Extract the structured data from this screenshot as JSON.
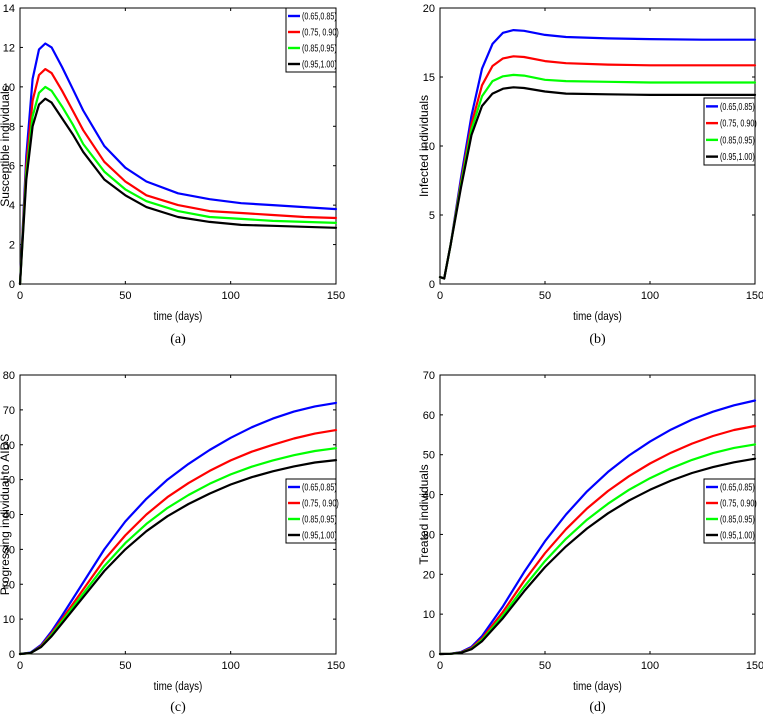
{
  "figure": {
    "colors": {
      "(0.65,0.85)": "#0000ff",
      "(0.75, 0.90)": "#ff0000",
      "(0.85,0.95)": "#00ff00",
      "(0.95,1.00)": "#000000"
    }
  },
  "chart_data": [
    {
      "type": "line",
      "panel": "a",
      "caption": "(a)",
      "xlabel": "time (days)",
      "ylabel": "Susceptible individuals",
      "xlim": [
        0,
        150
      ],
      "ylim": [
        0,
        14
      ],
      "xticks": [
        0,
        50,
        100,
        150
      ],
      "yticks": [
        0,
        2,
        4,
        6,
        8,
        10,
        12,
        14
      ],
      "legend_position": "top-right",
      "x": [
        0,
        3,
        6,
        9,
        12,
        15,
        20,
        25,
        30,
        40,
        50,
        60,
        75,
        90,
        105,
        120,
        135,
        150
      ],
      "series": [
        {
          "name": "(0.65,0.85)",
          "values": [
            0,
            6.5,
            10.4,
            11.9,
            12.2,
            12.0,
            11.0,
            9.9,
            8.8,
            7.0,
            5.9,
            5.2,
            4.6,
            4.3,
            4.1,
            4.0,
            3.9,
            3.8
          ]
        },
        {
          "name": "(0.75, 0.90)",
          "values": [
            0,
            6.0,
            9.3,
            10.6,
            10.9,
            10.7,
            9.8,
            8.8,
            7.8,
            6.2,
            5.2,
            4.5,
            4.0,
            3.7,
            3.6,
            3.5,
            3.4,
            3.35
          ]
        },
        {
          "name": "(0.85,0.95)",
          "values": [
            0,
            5.6,
            8.5,
            9.7,
            10.0,
            9.8,
            9.0,
            8.1,
            7.1,
            5.7,
            4.8,
            4.2,
            3.7,
            3.4,
            3.3,
            3.2,
            3.15,
            3.1
          ]
        },
        {
          "name": "(0.95,1.00)",
          "values": [
            0,
            5.3,
            8.0,
            9.1,
            9.4,
            9.2,
            8.4,
            7.6,
            6.7,
            5.3,
            4.5,
            3.9,
            3.4,
            3.15,
            3.0,
            2.95,
            2.9,
            2.85
          ]
        }
      ]
    },
    {
      "type": "line",
      "panel": "b",
      "caption": "(b)",
      "xlabel": "time (days)",
      "ylabel": "Infected individuals",
      "xlim": [
        0,
        150
      ],
      "ylim": [
        0,
        20
      ],
      "xticks": [
        0,
        50,
        100,
        150
      ],
      "yticks": [
        0,
        5,
        10,
        15,
        20
      ],
      "legend_position": "center-right",
      "x": [
        0,
        2,
        5,
        10,
        15,
        20,
        25,
        30,
        35,
        40,
        50,
        60,
        80,
        100,
        125,
        150
      ],
      "series": [
        {
          "name": "(0.65,0.85)",
          "values": [
            0.5,
            0.4,
            2.8,
            7.7,
            12.2,
            15.6,
            17.4,
            18.2,
            18.4,
            18.35,
            18.05,
            17.9,
            17.8,
            17.75,
            17.7,
            17.7
          ]
        },
        {
          "name": "(0.75, 0.90)",
          "values": [
            0.5,
            0.4,
            2.8,
            7.4,
            11.6,
            14.4,
            15.8,
            16.35,
            16.5,
            16.45,
            16.15,
            16.0,
            15.9,
            15.85,
            15.85,
            15.85
          ]
        },
        {
          "name": "(0.85,0.95)",
          "values": [
            0.5,
            0.4,
            2.8,
            7.2,
            11.2,
            13.6,
            14.7,
            15.05,
            15.15,
            15.1,
            14.8,
            14.7,
            14.65,
            14.6,
            14.6,
            14.6
          ]
        },
        {
          "name": "(0.95,1.00)",
          "values": [
            0.5,
            0.4,
            2.8,
            7.0,
            10.8,
            12.9,
            13.8,
            14.15,
            14.25,
            14.2,
            13.95,
            13.8,
            13.75,
            13.7,
            13.7,
            13.7
          ]
        }
      ]
    },
    {
      "type": "line",
      "panel": "c",
      "caption": "(c)",
      "xlabel": "time (days)",
      "ylabel": "Progressing individual to AIDS",
      "xlim": [
        0,
        150
      ],
      "ylim": [
        0,
        80
      ],
      "xticks": [
        0,
        50,
        100,
        150
      ],
      "yticks": [
        0,
        10,
        20,
        30,
        40,
        50,
        60,
        70,
        80
      ],
      "legend_position": "center-right",
      "x": [
        0,
        5,
        10,
        15,
        20,
        30,
        40,
        50,
        60,
        70,
        80,
        90,
        100,
        110,
        120,
        130,
        140,
        150
      ],
      "series": [
        {
          "name": "(0.65,0.85)",
          "values": [
            0,
            0.4,
            2.6,
            6.5,
            11.0,
            20.5,
            30.0,
            38.0,
            44.5,
            50.0,
            54.5,
            58.5,
            62.0,
            65.0,
            67.5,
            69.5,
            71.0,
            72.0
          ]
        },
        {
          "name": "(0.75, 0.90)",
          "values": [
            0,
            0.3,
            2.3,
            5.9,
            10.0,
            18.5,
            27.0,
            34.0,
            40.0,
            45.0,
            49.0,
            52.5,
            55.5,
            58.0,
            60.0,
            61.8,
            63.2,
            64.2
          ]
        },
        {
          "name": "(0.85,0.95)",
          "values": [
            0,
            0.3,
            2.1,
            5.5,
            9.4,
            17.3,
            25.2,
            31.8,
            37.3,
            41.9,
            45.6,
            48.8,
            51.5,
            53.7,
            55.5,
            57.0,
            58.2,
            59.0
          ]
        },
        {
          "name": "(0.95,1.00)",
          "values": [
            0,
            0.3,
            2.0,
            5.1,
            8.8,
            16.3,
            23.8,
            30.0,
            35.2,
            39.5,
            43.0,
            46.0,
            48.6,
            50.7,
            52.4,
            53.8,
            54.9,
            55.6
          ]
        }
      ]
    },
    {
      "type": "line",
      "panel": "d",
      "caption": "(d)",
      "xlabel": "time (days)",
      "ylabel": "Treated individuals",
      "xlim": [
        0,
        150
      ],
      "ylim": [
        0,
        70
      ],
      "xticks": [
        0,
        50,
        100,
        150
      ],
      "yticks": [
        0,
        10,
        20,
        30,
        40,
        50,
        60,
        70
      ],
      "legend_position": "center-right",
      "x": [
        0,
        5,
        10,
        15,
        20,
        30,
        40,
        50,
        60,
        70,
        80,
        90,
        100,
        110,
        120,
        130,
        140,
        150
      ],
      "series": [
        {
          "name": "(0.65,0.85)",
          "values": [
            0,
            0.05,
            0.5,
            1.8,
            4.5,
            12.0,
            20.5,
            28.3,
            35.0,
            40.8,
            45.7,
            49.8,
            53.3,
            56.3,
            58.8,
            60.8,
            62.4,
            63.6
          ]
        },
        {
          "name": "(0.75, 0.90)",
          "values": [
            0,
            0.05,
            0.4,
            1.5,
            3.9,
            10.6,
            18.3,
            25.3,
            31.3,
            36.5,
            40.9,
            44.6,
            47.8,
            50.5,
            52.8,
            54.7,
            56.2,
            57.2
          ]
        },
        {
          "name": "(0.85,0.95)",
          "values": [
            0,
            0.05,
            0.35,
            1.3,
            3.5,
            9.7,
            16.8,
            23.3,
            28.9,
            33.7,
            37.7,
            41.2,
            44.1,
            46.6,
            48.7,
            50.4,
            51.7,
            52.6
          ]
        },
        {
          "name": "(0.95,1.00)",
          "values": [
            0,
            0.05,
            0.3,
            1.2,
            3.2,
            9.0,
            15.7,
            21.8,
            27.0,
            31.5,
            35.3,
            38.5,
            41.2,
            43.5,
            45.4,
            46.9,
            48.1,
            49.0
          ]
        }
      ]
    }
  ]
}
